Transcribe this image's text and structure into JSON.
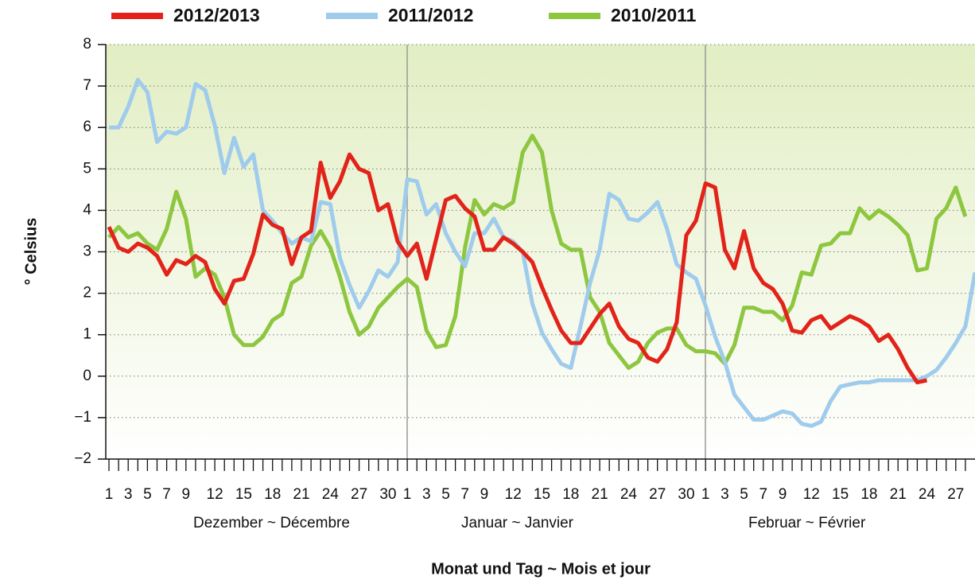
{
  "chart_data": {
    "type": "line",
    "xlabel": "Monat und Tag ~ Mois et jour",
    "ylabel": "° Celsius",
    "months": [
      "Dezember ~ Décembre",
      "Januar ~ Janvier",
      "Februar ~ Février"
    ],
    "categories": [
      "1",
      null,
      "3",
      null,
      "5",
      null,
      "7",
      null,
      "9",
      null,
      null,
      "12",
      null,
      null,
      "15",
      null,
      null,
      "18",
      null,
      null,
      "21",
      null,
      null,
      "24",
      null,
      null,
      "27",
      null,
      null,
      "30",
      null,
      "1",
      null,
      "3",
      null,
      "5",
      null,
      "7",
      null,
      "9",
      null,
      null,
      "12",
      null,
      null,
      "15",
      null,
      null,
      "18",
      null,
      null,
      "21",
      null,
      null,
      "24",
      null,
      null,
      "27",
      null,
      null,
      "30",
      null,
      "1",
      null,
      "3",
      null,
      "5",
      null,
      "7",
      null,
      "9",
      null,
      null,
      "12",
      null,
      null,
      "15",
      null,
      null,
      "18",
      null,
      null,
      "21",
      null,
      null,
      "24",
      null,
      null,
      "27",
      null,
      null
    ],
    "ylim": [
      -2,
      8
    ],
    "yticks": [
      {
        "value": -2,
        "label": "−2"
      },
      {
        "value": -1,
        "label": "−1"
      },
      0,
      1,
      2,
      3,
      4,
      5,
      6,
      7,
      8
    ],
    "grid": true,
    "legend": "top",
    "series": [
      {
        "name": "2012/2013",
        "color": "#e2231a",
        "values": [
          3.6,
          3.1,
          3.0,
          3.2,
          3.1,
          2.9,
          2.45,
          2.8,
          2.7,
          2.9,
          2.75,
          2.1,
          1.75,
          2.3,
          2.35,
          2.95,
          3.9,
          3.65,
          3.55,
          2.7,
          3.35,
          3.5,
          5.15,
          4.3,
          4.7,
          5.35,
          5.0,
          4.9,
          4.0,
          4.15,
          3.25,
          2.9,
          3.2,
          2.35,
          3.3,
          4.25,
          4.35,
          4.05,
          3.85,
          3.05,
          3.05,
          3.35,
          3.2,
          3.0,
          2.75,
          2.15,
          1.6,
          1.1,
          0.8,
          0.8,
          1.15,
          1.5,
          1.75,
          1.2,
          0.9,
          0.8,
          0.45,
          0.35,
          0.65,
          1.3,
          3.4,
          3.75,
          4.65,
          4.55,
          3.05,
          2.6,
          3.5,
          2.6,
          2.25,
          2.1,
          1.75,
          1.1,
          1.05,
          1.35,
          1.45,
          1.15,
          1.3,
          1.45,
          1.35,
          1.2,
          0.85,
          1.0,
          0.65,
          0.2,
          -0.15,
          -0.1,
          null,
          null,
          null,
          null,
          null
        ]
      },
      {
        "name": "2011/2012",
        "color": "#9fcbec",
        "values": [
          6.0,
          6.0,
          6.5,
          7.15,
          6.85,
          5.65,
          5.9,
          5.85,
          6.0,
          7.05,
          6.9,
          6.05,
          4.9,
          5.75,
          5.05,
          5.35,
          4.0,
          3.75,
          3.45,
          3.2,
          3.35,
          3.25,
          4.2,
          4.15,
          2.85,
          2.2,
          1.65,
          2.05,
          2.55,
          2.4,
          2.75,
          4.75,
          4.7,
          3.9,
          4.15,
          3.45,
          3.0,
          2.65,
          3.45,
          3.45,
          3.8,
          3.35,
          3.25,
          3.0,
          1.75,
          1.05,
          0.65,
          0.3,
          0.2,
          1.2,
          2.25,
          3.05,
          4.4,
          4.25,
          3.8,
          3.75,
          3.95,
          4.2,
          3.55,
          2.7,
          2.5,
          2.35,
          1.7,
          0.95,
          0.35,
          -0.45,
          -0.75,
          -1.05,
          -1.05,
          -0.95,
          -0.85,
          -0.9,
          -1.15,
          -1.2,
          -1.1,
          -0.6,
          -0.25,
          -0.2,
          -0.15,
          -0.15,
          -0.1,
          -0.1,
          -0.1,
          -0.1,
          -0.1,
          0.0,
          0.15,
          0.45,
          0.8,
          1.2,
          2.5
        ]
      },
      {
        "name": "2010/2011",
        "color": "#8dc63f",
        "values": [
          3.35,
          3.6,
          3.35,
          3.45,
          3.2,
          3.05,
          3.55,
          4.45,
          3.8,
          2.4,
          2.6,
          2.45,
          1.9,
          1.0,
          0.75,
          0.75,
          0.95,
          1.35,
          1.5,
          2.25,
          2.4,
          3.15,
          3.5,
          3.1,
          2.4,
          1.55,
          1.0,
          1.2,
          1.65,
          1.9,
          2.15,
          2.35,
          2.15,
          1.1,
          0.7,
          0.75,
          1.45,
          3.1,
          4.25,
          3.9,
          4.15,
          4.05,
          4.2,
          5.4,
          5.8,
          5.4,
          4.0,
          3.2,
          3.05,
          3.05,
          1.9,
          1.55,
          0.8,
          0.5,
          0.2,
          0.35,
          0.8,
          1.05,
          1.15,
          1.15,
          0.75,
          0.6,
          0.6,
          0.55,
          0.3,
          0.75,
          1.65,
          1.65,
          1.55,
          1.55,
          1.35,
          1.7,
          2.5,
          2.45,
          3.15,
          3.2,
          3.45,
          3.45,
          4.05,
          3.8,
          4.0,
          3.85,
          3.65,
          3.4,
          2.55,
          2.6,
          3.8,
          4.05,
          4.55,
          3.85,
          null
        ]
      }
    ]
  }
}
